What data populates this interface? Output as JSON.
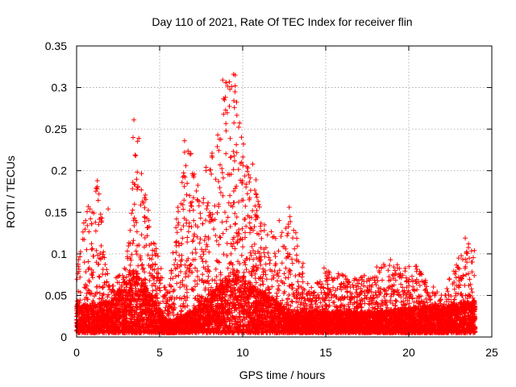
{
  "chart_data": {
    "type": "scatter",
    "title": "Day 110 of 2021, Rate Of TEC Index for receiver flin",
    "xlabel": "GPS time / hours",
    "ylabel": "ROTI / TECUs",
    "xlim": [
      0,
      25
    ],
    "ylim": [
      0,
      0.35
    ],
    "xticks": [
      "0",
      "5",
      "10",
      "15",
      "20",
      "25"
    ],
    "yticks": [
      "0",
      "0.05",
      "0.1",
      "0.15",
      "0.2",
      "0.25",
      "0.3",
      "0.35"
    ],
    "grid": true,
    "marker": "plus",
    "series_color": "#ff0000",
    "x_span": [
      0,
      24
    ],
    "envelope": [
      {
        "x": 0.0,
        "y": 0.08
      },
      {
        "x": 0.6,
        "y": 0.16
      },
      {
        "x": 1.3,
        "y": 0.19
      },
      {
        "x": 2.0,
        "y": 0.06
      },
      {
        "x": 3.0,
        "y": 0.09
      },
      {
        "x": 3.5,
        "y": 0.26
      },
      {
        "x": 4.0,
        "y": 0.19
      },
      {
        "x": 4.5,
        "y": 0.13
      },
      {
        "x": 5.5,
        "y": 0.05
      },
      {
        "x": 6.5,
        "y": 0.24
      },
      {
        "x": 7.5,
        "y": 0.19
      },
      {
        "x": 8.5,
        "y": 0.24
      },
      {
        "x": 9.0,
        "y": 0.31
      },
      {
        "x": 9.5,
        "y": 0.32
      },
      {
        "x": 10.0,
        "y": 0.23
      },
      {
        "x": 11.0,
        "y": 0.16
      },
      {
        "x": 12.0,
        "y": 0.12
      },
      {
        "x": 13.0,
        "y": 0.15
      },
      {
        "x": 14.0,
        "y": 0.06
      },
      {
        "x": 15.0,
        "y": 0.08
      },
      {
        "x": 17.0,
        "y": 0.07
      },
      {
        "x": 18.5,
        "y": 0.09
      },
      {
        "x": 20.5,
        "y": 0.085
      },
      {
        "x": 22.0,
        "y": 0.05
      },
      {
        "x": 23.5,
        "y": 0.12
      },
      {
        "x": 24.0,
        "y": 0.1
      }
    ],
    "base": [
      {
        "x": 0.0,
        "y": 0.025
      },
      {
        "x": 2.0,
        "y": 0.03
      },
      {
        "x": 3.5,
        "y": 0.06
      },
      {
        "x": 5.5,
        "y": 0.01
      },
      {
        "x": 7.0,
        "y": 0.02
      },
      {
        "x": 9.5,
        "y": 0.06
      },
      {
        "x": 11.0,
        "y": 0.04
      },
      {
        "x": 13.0,
        "y": 0.02
      },
      {
        "x": 18.0,
        "y": 0.02
      },
      {
        "x": 21.0,
        "y": 0.025
      },
      {
        "x": 24.0,
        "y": 0.03
      }
    ],
    "highlights": [
      {
        "x": 9.45,
        "y": 0.316
      },
      {
        "x": 9.55,
        "y": 0.315
      },
      {
        "x": 8.8,
        "y": 0.309
      },
      {
        "x": 9.0,
        "y": 0.306
      },
      {
        "x": 9.55,
        "y": 0.302
      },
      {
        "x": 8.9,
        "y": 0.285
      },
      {
        "x": 9.5,
        "y": 0.276
      },
      {
        "x": 8.85,
        "y": 0.268
      },
      {
        "x": 3.45,
        "y": 0.261
      },
      {
        "x": 3.4,
        "y": 0.24
      },
      {
        "x": 6.5,
        "y": 0.236
      },
      {
        "x": 8.5,
        "y": 0.243
      },
      {
        "x": 3.75,
        "y": 0.239
      },
      {
        "x": 10.05,
        "y": 0.232
      },
      {
        "x": 10.6,
        "y": 0.208
      },
      {
        "x": 10.8,
        "y": 0.189
      },
      {
        "x": 1.25,
        "y": 0.188
      },
      {
        "x": 1.35,
        "y": 0.172
      },
      {
        "x": 0.7,
        "y": 0.157
      },
      {
        "x": 0.55,
        "y": 0.14
      },
      {
        "x": 0.6,
        "y": 0.105
      },
      {
        "x": 1.9,
        "y": 0.154
      },
      {
        "x": 12.8,
        "y": 0.156
      },
      {
        "x": 12.2,
        "y": 0.14
      },
      {
        "x": 23.4,
        "y": 0.119
      },
      {
        "x": 23.6,
        "y": 0.112
      },
      {
        "x": 23.5,
        "y": 0.09
      },
      {
        "x": 23.95,
        "y": 0.104
      },
      {
        "x": 14.9,
        "y": 0.083
      },
      {
        "x": 18.9,
        "y": 0.093
      },
      {
        "x": 20.4,
        "y": 0.085
      },
      {
        "x": 17.2,
        "y": 0.069
      },
      {
        "x": 15.7,
        "y": 0.071
      }
    ]
  }
}
